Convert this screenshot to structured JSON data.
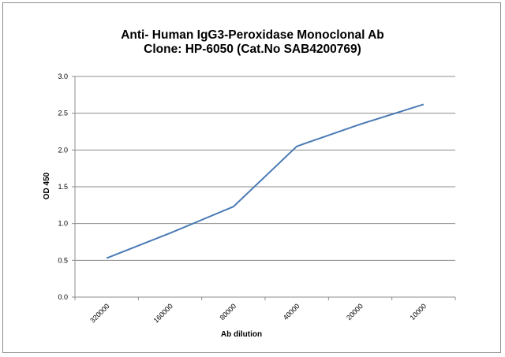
{
  "chart_data": {
    "type": "line",
    "title": "Anti- Human IgG3-Peroxidase Monoclonal Ab",
    "subtitle": "Clone: HP-6050 (Cat.No SAB4200769)",
    "xlabel": "Ab dilution",
    "ylabel": "OD 450",
    "categories": [
      "320000",
      "160000",
      "80000",
      "40000",
      "20000",
      "10000"
    ],
    "series": [
      {
        "values": [
          0.53,
          0.87,
          1.23,
          2.05,
          2.35,
          2.62
        ],
        "color": "#4a7ab5"
      }
    ],
    "ylim": [
      0,
      3.0
    ],
    "yticks": [
      "0.0",
      "0.5",
      "1.0",
      "1.5",
      "2.0",
      "2.5",
      "3.0"
    ],
    "grid": true,
    "legend": false
  }
}
